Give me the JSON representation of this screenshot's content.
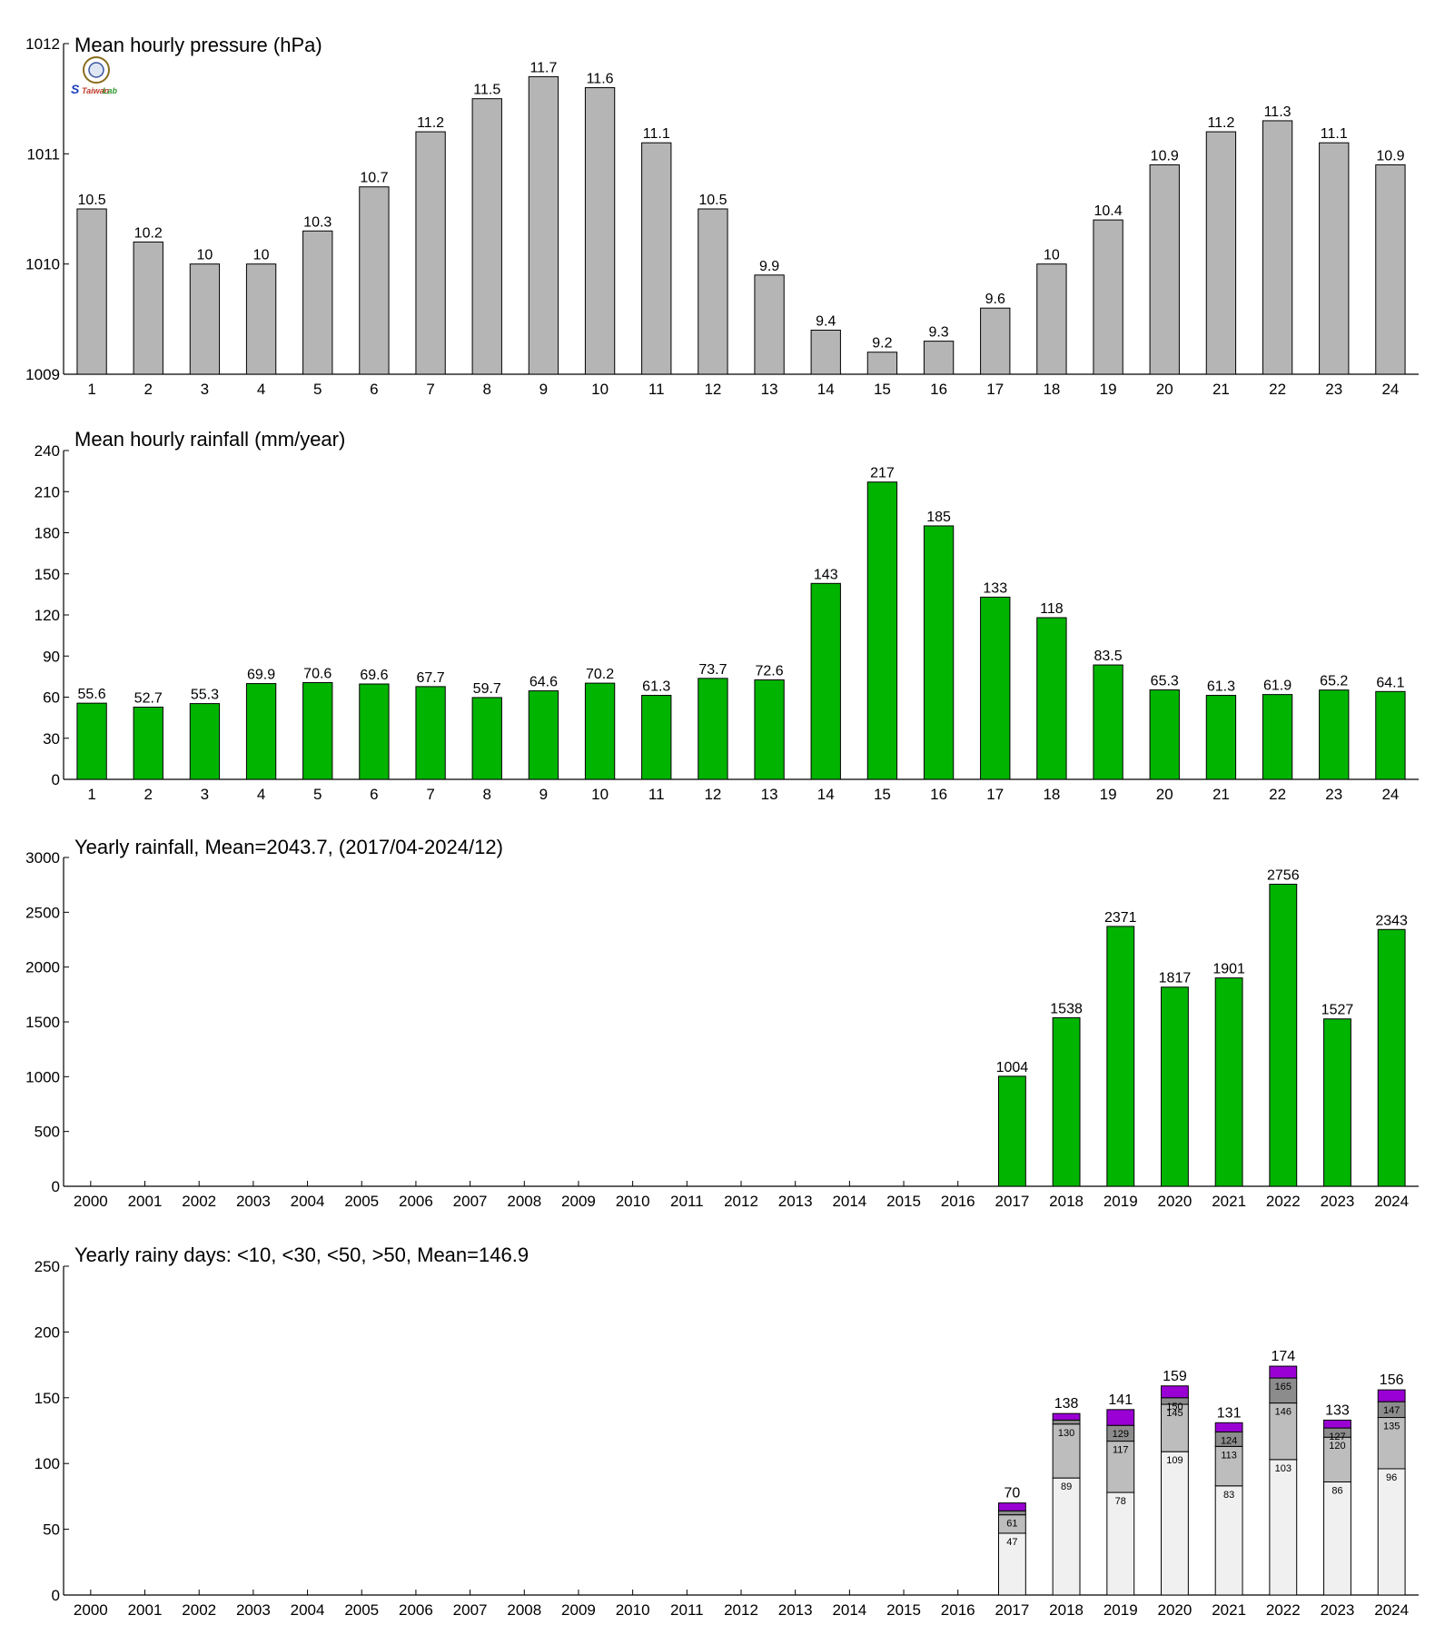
{
  "charts": [
    {
      "title": "Mean hourly pressure (hPa)",
      "chart_data": {
        "type": "bar",
        "title": "Mean hourly pressure (hPa)",
        "categories": [
          "1",
          "2",
          "3",
          "4",
          "5",
          "6",
          "7",
          "8",
          "9",
          "10",
          "11",
          "12",
          "13",
          "14",
          "15",
          "16",
          "17",
          "18",
          "19",
          "20",
          "21",
          "22",
          "23",
          "24"
        ],
        "values": [
          1010.5,
          1010.2,
          1010.0,
          1010.0,
          1010.3,
          1010.7,
          1011.2,
          1011.5,
          1011.7,
          1011.6,
          1011.1,
          1010.5,
          1009.9,
          1009.4,
          1009.2,
          1009.3,
          1009.6,
          1010.0,
          1010.4,
          1010.9,
          1011.2,
          1011.3,
          1011.1,
          1010.9
        ],
        "data_labels": [
          "10.5",
          "10.2",
          "10",
          "10",
          "10.3",
          "10.7",
          "11.2",
          "11.5",
          "11.7",
          "11.6",
          "11.1",
          "10.5",
          "9.9",
          "9.4",
          "9.2",
          "9.3",
          "9.6",
          "10",
          "10.4",
          "10.9",
          "11.2",
          "11.3",
          "11.1",
          "10.9"
        ],
        "ylim": [
          1009,
          1012
        ],
        "yticks": [
          1009,
          1010,
          1011,
          1012
        ],
        "bar_color": "#b5b5b5",
        "grid": false
      }
    },
    {
      "title": "Mean hourly rainfall (mm/year)",
      "chart_data": {
        "type": "bar",
        "title": "Mean hourly rainfall (mm/year)",
        "categories": [
          "1",
          "2",
          "3",
          "4",
          "5",
          "6",
          "7",
          "8",
          "9",
          "10",
          "11",
          "12",
          "13",
          "14",
          "15",
          "16",
          "17",
          "18",
          "19",
          "20",
          "21",
          "22",
          "23",
          "24"
        ],
        "values": [
          55.6,
          52.7,
          55.3,
          69.9,
          70.6,
          69.6,
          67.7,
          59.7,
          64.6,
          70.2,
          61.3,
          73.7,
          72.6,
          143,
          217,
          185,
          133,
          118,
          83.5,
          65.3,
          61.3,
          61.9,
          65.2,
          64.1
        ],
        "data_labels": [
          "55.6",
          "52.7",
          "55.3",
          "69.9",
          "70.6",
          "69.6",
          "67.7",
          "59.7",
          "64.6",
          "70.2",
          "61.3",
          "73.7",
          "72.6",
          "143",
          "217",
          "185",
          "133",
          "118",
          "83.5",
          "65.3",
          "61.3",
          "61.9",
          "65.2",
          "64.1"
        ],
        "ylim": [
          0,
          240
        ],
        "yticks": [
          0,
          30,
          60,
          90,
          120,
          150,
          180,
          210,
          240
        ],
        "bar_color": "#00b400",
        "grid": false
      }
    },
    {
      "title": "Yearly rainfall, Mean=2043.7, (2017/04-2024/12)",
      "chart_data": {
        "type": "bar",
        "title": "Yearly rainfall, Mean=2043.7, (2017/04-2024/12)",
        "categories": [
          "2000",
          "2001",
          "2002",
          "2003",
          "2004",
          "2005",
          "2006",
          "2007",
          "2008",
          "2009",
          "2010",
          "2011",
          "2012",
          "2013",
          "2014",
          "2015",
          "2016",
          "2017",
          "2018",
          "2019",
          "2020",
          "2021",
          "2022",
          "2023",
          "2024"
        ],
        "values": [
          null,
          null,
          null,
          null,
          null,
          null,
          null,
          null,
          null,
          null,
          null,
          null,
          null,
          null,
          null,
          null,
          null,
          1004,
          1538,
          2371,
          1817,
          1901,
          2756,
          1527,
          2343
        ],
        "data_labels": [
          "",
          "",
          "",
          "",
          "",
          "",
          "",
          "",
          "",
          "",
          "",
          "",
          "",
          "",
          "",
          "",
          "",
          "1004",
          "1538",
          "2371",
          "1817",
          "1901",
          "2756",
          "1527",
          "2343"
        ],
        "ylim": [
          0,
          3000
        ],
        "yticks": [
          0,
          500,
          1000,
          1500,
          2000,
          2500,
          3000
        ],
        "bar_color": "#00b400",
        "grid": false
      }
    },
    {
      "title": "Yearly rainy days: <10, <30, <50, >50, Mean=146.9",
      "chart_data": {
        "type": "bar",
        "stacked": true,
        "title": "Yearly rainy days: <10, <30, <50, >50, Mean=146.9",
        "categories": [
          "2000",
          "2001",
          "2002",
          "2003",
          "2004",
          "2005",
          "2006",
          "2007",
          "2008",
          "2009",
          "2010",
          "2011",
          "2012",
          "2013",
          "2014",
          "2015",
          "2016",
          "2017",
          "2018",
          "2019",
          "2020",
          "2021",
          "2022",
          "2023",
          "2024"
        ],
        "cumulative_series": [
          {
            "name": "<10",
            "color": "#f0f0f0",
            "values": [
              null,
              null,
              null,
              null,
              null,
              null,
              null,
              null,
              null,
              null,
              null,
              null,
              null,
              null,
              null,
              null,
              null,
              47,
              89,
              78,
              109,
              83,
              103,
              86,
              96
            ]
          },
          {
            "name": "<30",
            "color": "#bdbdbd",
            "values": [
              null,
              null,
              null,
              null,
              null,
              null,
              null,
              null,
              null,
              null,
              null,
              null,
              null,
              null,
              null,
              null,
              null,
              61,
              130,
              117,
              145,
              113,
              146,
              120,
              135
            ]
          },
          {
            "name": "<50",
            "color": "#8c8c8c",
            "values": [
              null,
              null,
              null,
              null,
              null,
              null,
              null,
              null,
              null,
              null,
              null,
              null,
              null,
              null,
              null,
              null,
              null,
              64,
              133,
              129,
              150,
              124,
              165,
              127,
              147
            ]
          },
          {
            "name": ">50",
            "color": "#9a00d4",
            "values": [
              null,
              null,
              null,
              null,
              null,
              null,
              null,
              null,
              null,
              null,
              null,
              null,
              null,
              null,
              null,
              null,
              null,
              70,
              138,
              141,
              159,
              131,
              174,
              133,
              156
            ]
          }
        ],
        "segment_labels": [
          [
            "",
            "",
            "",
            "",
            "",
            "",
            "",
            "",
            "",
            "",
            "",
            "",
            "",
            "",
            "",
            "",
            "",
            "47",
            "89",
            "78",
            "109",
            "83",
            "103",
            "86",
            "96"
          ],
          [
            "",
            "",
            "",
            "",
            "",
            "",
            "",
            "",
            "",
            "",
            "",
            "",
            "",
            "",
            "",
            "",
            "",
            "61",
            "130",
            "117",
            "145",
            "113",
            "146",
            "120",
            "135"
          ],
          [
            "",
            "",
            "",
            "",
            "",
            "",
            "",
            "",
            "",
            "",
            "",
            "",
            "",
            "",
            "",
            "",
            "",
            "",
            "",
            "129",
            "150",
            "124",
            "165",
            "127",
            "147"
          ]
        ],
        "total_labels": [
          "",
          "",
          "",
          "",
          "",
          "",
          "",
          "",
          "",
          "",
          "",
          "",
          "",
          "",
          "",
          "",
          "",
          "70",
          "138",
          "141",
          "159",
          "131",
          "174",
          "133",
          "156"
        ],
        "ylim": [
          0,
          250
        ],
        "yticks": [
          0,
          50,
          100,
          150,
          200,
          250
        ],
        "grid": false
      }
    }
  ],
  "logo": {
    "text_left": "S",
    "text_mid": "Taiwan",
    "text_right": "Lab"
  }
}
